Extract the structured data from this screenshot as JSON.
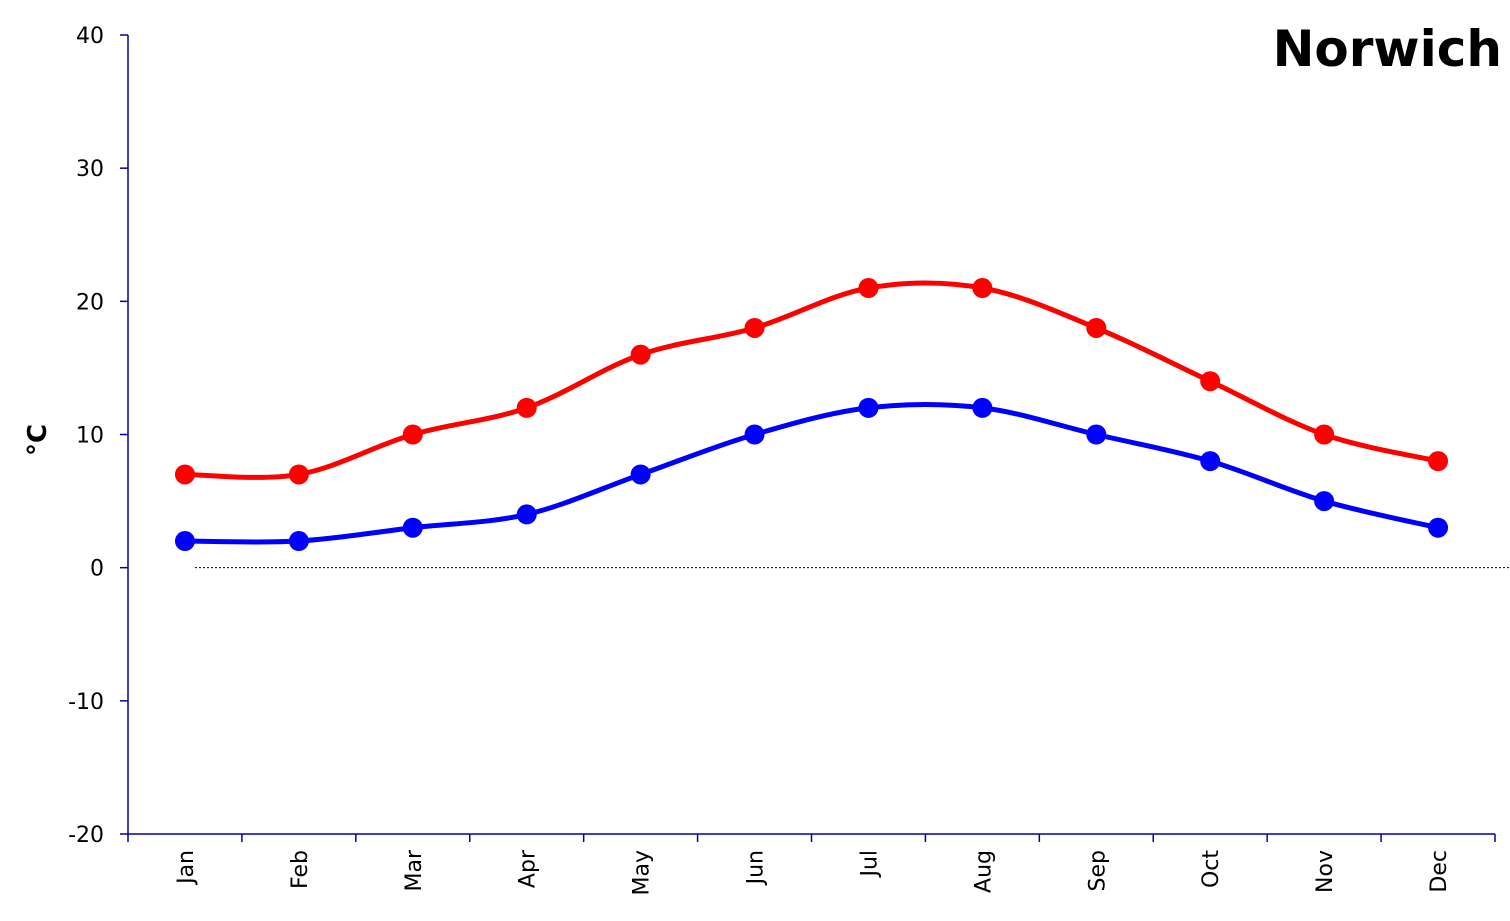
{
  "chart_data": {
    "type": "line",
    "title": "Norwich",
    "ylabel": "°C",
    "xlabel": "",
    "categories": [
      "Jan",
      "Feb",
      "Mar",
      "Apr",
      "May",
      "Jun",
      "Jul",
      "Aug",
      "Sep",
      "Oct",
      "Nov",
      "Dec"
    ],
    "ylim": [
      -20,
      40
    ],
    "yticks": [
      -20,
      -10,
      0,
      10,
      20,
      30,
      40
    ],
    "grid": false,
    "legend": "none",
    "zero_line": true,
    "series": [
      {
        "color": "#ff0000",
        "values": [
          7,
          7,
          10,
          12,
          16,
          18,
          21,
          21,
          18,
          14,
          10,
          8
        ]
      },
      {
        "color": "#0000ff",
        "values": [
          2,
          2,
          3,
          4,
          7,
          10,
          12,
          12,
          10,
          8,
          5,
          3
        ]
      }
    ]
  }
}
